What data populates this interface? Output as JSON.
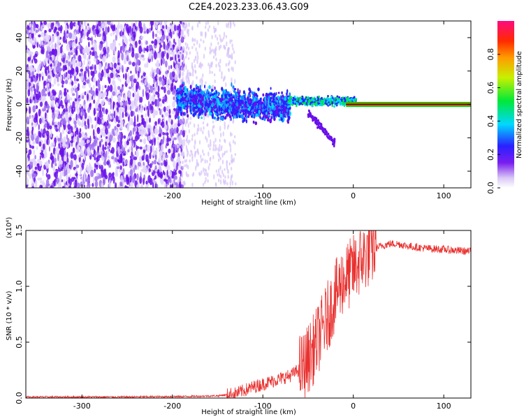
{
  "title": "C2E4.2023.233.06.43.G09",
  "chart_data": [
    {
      "type": "heatmap",
      "name": "spectrogram",
      "xlabel": "Height of straight line (km)",
      "ylabel": "Frequency (Hz)",
      "xlim": [
        -362,
        130
      ],
      "ylim": [
        -50,
        50
      ],
      "xticks": [
        -300,
        -200,
        -100,
        0,
        100
      ],
      "yticks": [
        -40,
        -20,
        0,
        20,
        40
      ],
      "colorbar": {
        "label": "Normalized spectral amplitude",
        "range": [
          0,
          1
        ],
        "ticks": [
          "0.0",
          "0.2",
          "0.4",
          "0.6",
          "0.8"
        ]
      },
      "dominant_frequency_hz": 0,
      "description_regions": [
        {
          "x_range": [
            -362,
            -190
          ],
          "level": "low-medium",
          "spread_hz": 50
        },
        {
          "x_range": [
            -190,
            -70
          ],
          "level": "medium",
          "spread_hz": 12
        },
        {
          "x_range": [
            -70,
            0
          ],
          "level": "medium-high",
          "spread_hz": 4
        },
        {
          "x_range": [
            0,
            130
          ],
          "level": "high",
          "spread_hz": 1
        }
      ]
    },
    {
      "type": "line",
      "name": "snr",
      "xlabel": "Height of straight line (km)",
      "ylabel": "SNR (10 * v/v)",
      "yscale_label": "(x10⁴)",
      "xlim": [
        -362,
        130
      ],
      "ylim": [
        0,
        1.5
      ],
      "xticks": [
        -300,
        -200,
        -100,
        0,
        100
      ],
      "yticks": [
        "0.0",
        "0.5",
        "1.0",
        "1.5"
      ],
      "color": "#e8312f",
      "trend_x": [
        -362,
        -250,
        -180,
        -150,
        -130,
        -110,
        -90,
        -70,
        -55,
        -45,
        -35,
        -25,
        -18,
        -12,
        -5,
        0,
        10,
        20,
        30,
        40,
        50,
        60,
        80,
        100,
        130
      ],
      "trend_y": [
        0.01,
        0.01,
        0.015,
        0.02,
        0.04,
        0.1,
        0.15,
        0.2,
        0.28,
        0.42,
        0.6,
        0.8,
        0.95,
        1.05,
        1.1,
        1.15,
        1.25,
        1.32,
        1.36,
        1.38,
        1.38,
        1.36,
        1.34,
        1.33,
        1.31
      ]
    }
  ]
}
